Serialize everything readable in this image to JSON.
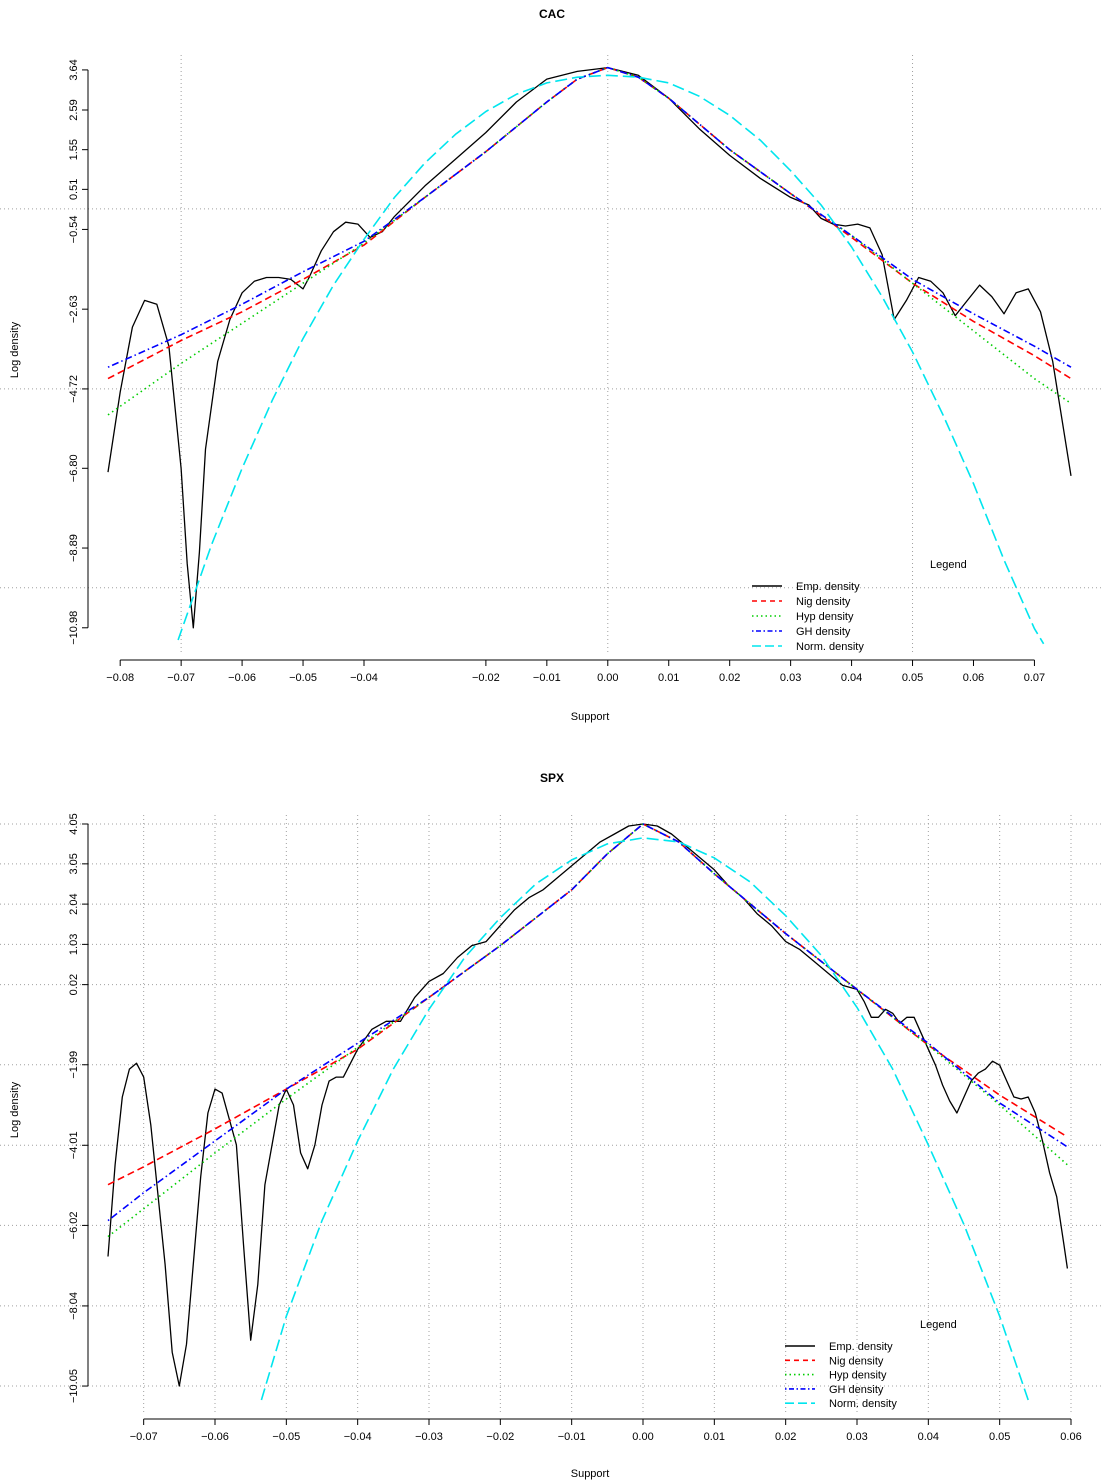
{
  "chart_data": [
    {
      "type": "line",
      "title": "CAC",
      "xlabel": "Support",
      "ylabel": "Log density",
      "x_ticks": [
        -0.08,
        -0.07,
        -0.06,
        -0.05,
        -0.04,
        -0.02,
        -0.01,
        0.0,
        0.01,
        0.02,
        0.03,
        0.04,
        0.05,
        0.06,
        0.07
      ],
      "x_tick_labels": [
        "−0.08",
        "−0.07",
        "−0.06",
        "−0.05",
        "−0.04",
        "−0.02",
        "−0.01",
        "0.00",
        "0.01",
        "0.02",
        "0.03",
        "0.04",
        "0.05",
        "0.06",
        "0.07"
      ],
      "y_ticks": [
        3.64,
        2.59,
        1.55,
        0.51,
        -0.54,
        -2.63,
        -4.72,
        -6.8,
        -8.89,
        -10.98
      ],
      "y_tick_labels": [
        "3.64",
        "2.59",
        "1.55",
        "0.51",
        "−0.54",
        "−2.63",
        "−4.72",
        "−6.80",
        "−8.89",
        "−10.98"
      ],
      "xlim": [
        -0.082,
        0.076
      ],
      "ylim": [
        -11.3,
        3.9
      ],
      "grid": {
        "vertical": [
          -0.07,
          0.0,
          0.05
        ],
        "horizontal": [
          0.0,
          -4.72,
          -9.93
        ]
      },
      "legend": {
        "title": "Legend",
        "position": "bottom-right"
      },
      "series": [
        {
          "name": "Emp. density",
          "color": "#000000",
          "dash": "solid",
          "x": [
            -0.082,
            -0.08,
            -0.078,
            -0.076,
            -0.074,
            -0.072,
            -0.07,
            -0.069,
            -0.068,
            -0.067,
            -0.066,
            -0.064,
            -0.062,
            -0.06,
            -0.058,
            -0.056,
            -0.054,
            -0.052,
            -0.05,
            -0.049,
            -0.047,
            -0.045,
            -0.043,
            -0.041,
            -0.039,
            -0.037,
            -0.035,
            -0.03,
            -0.025,
            -0.02,
            -0.015,
            -0.01,
            -0.005,
            0.0,
            0.005,
            0.01,
            0.015,
            0.02,
            0.025,
            0.03,
            0.033,
            0.035,
            0.037,
            0.039,
            0.041,
            0.043,
            0.045,
            0.047,
            0.049,
            0.051,
            0.053,
            0.055,
            0.057,
            0.059,
            0.061,
            0.063,
            0.065,
            0.067,
            0.069,
            0.071,
            0.073,
            0.076
          ],
          "y": [
            -6.9,
            -4.8,
            -3.1,
            -2.4,
            -2.5,
            -3.6,
            -6.8,
            -9.3,
            -10.98,
            -9.0,
            -6.3,
            -4.0,
            -2.9,
            -2.2,
            -1.9,
            -1.8,
            -1.8,
            -1.85,
            -2.1,
            -1.8,
            -1.1,
            -0.6,
            -0.35,
            -0.4,
            -0.75,
            -0.6,
            -0.2,
            0.6,
            1.3,
            2.0,
            2.8,
            3.4,
            3.6,
            3.7,
            3.5,
            2.9,
            2.1,
            1.4,
            0.8,
            0.3,
            0.1,
            -0.25,
            -0.4,
            -0.45,
            -0.4,
            -0.5,
            -1.2,
            -2.9,
            -2.4,
            -1.8,
            -1.9,
            -2.2,
            -2.8,
            -2.4,
            -2.0,
            -2.3,
            -2.75,
            -2.2,
            -2.1,
            -2.7,
            -4.0,
            -7.0
          ]
        },
        {
          "name": "Nig density",
          "color": "#ff0000",
          "dash": "dashed",
          "x": [
            -0.082,
            -0.07,
            -0.06,
            -0.05,
            -0.04,
            -0.03,
            -0.02,
            -0.01,
            -0.005,
            0.0,
            0.005,
            0.01,
            0.02,
            0.03,
            0.04,
            0.05,
            0.06,
            0.07,
            0.076
          ],
          "y": [
            -4.45,
            -3.45,
            -2.7,
            -1.85,
            -0.95,
            0.3,
            1.5,
            2.8,
            3.4,
            3.7,
            3.45,
            2.9,
            1.55,
            0.4,
            -0.75,
            -1.95,
            -2.95,
            -3.85,
            -4.45
          ]
        },
        {
          "name": "Hyp density",
          "color": "#00cd00",
          "dash": "dotted",
          "x": [
            -0.082,
            -0.07,
            -0.06,
            -0.05,
            -0.04,
            -0.03,
            -0.02,
            -0.01,
            -0.005,
            0.0,
            0.005,
            0.01,
            0.02,
            0.03,
            0.04,
            0.05,
            0.06,
            0.07,
            0.076
          ],
          "y": [
            -5.4,
            -4.05,
            -3.0,
            -1.95,
            -0.9,
            0.3,
            1.5,
            2.8,
            3.4,
            3.7,
            3.45,
            2.9,
            1.55,
            0.4,
            -0.7,
            -1.95,
            -3.2,
            -4.45,
            -5.1
          ]
        },
        {
          "name": "GH density",
          "color": "#0000ff",
          "dash": "dashdot",
          "x": [
            -0.082,
            -0.07,
            -0.06,
            -0.05,
            -0.04,
            -0.03,
            -0.02,
            -0.01,
            -0.005,
            0.0,
            0.005,
            0.01,
            0.02,
            0.03,
            0.04,
            0.05,
            0.06,
            0.07,
            0.076
          ],
          "y": [
            -4.15,
            -3.3,
            -2.5,
            -1.65,
            -0.85,
            0.3,
            1.5,
            2.8,
            3.4,
            3.7,
            3.45,
            2.9,
            1.55,
            0.4,
            -0.7,
            -1.85,
            -2.75,
            -3.6,
            -4.15
          ]
        },
        {
          "name": "Norm. density",
          "color": "#00e5ee",
          "dash": "longdash",
          "x": [
            -0.0705,
            -0.065,
            -0.06,
            -0.055,
            -0.05,
            -0.045,
            -0.04,
            -0.035,
            -0.03,
            -0.025,
            -0.02,
            -0.015,
            -0.01,
            -0.005,
            0.0,
            0.005,
            0.01,
            0.015,
            0.02,
            0.025,
            0.03,
            0.035,
            0.04,
            0.045,
            0.05,
            0.055,
            0.06,
            0.065,
            0.07,
            0.0715
          ],
          "y": [
            -11.3,
            -8.8,
            -6.8,
            -5.0,
            -3.4,
            -2.0,
            -0.8,
            0.3,
            1.2,
            1.95,
            2.55,
            3.0,
            3.3,
            3.45,
            3.5,
            3.45,
            3.3,
            2.95,
            2.45,
            1.8,
            1.0,
            0.1,
            -1.0,
            -2.3,
            -3.75,
            -5.4,
            -7.2,
            -9.2,
            -11.0,
            -11.4
          ]
        }
      ]
    },
    {
      "type": "line",
      "title": "SPX",
      "xlabel": "Support",
      "ylabel": "Log density",
      "x_ticks": [
        -0.07,
        -0.06,
        -0.05,
        -0.04,
        -0.03,
        -0.02,
        -0.01,
        0.0,
        0.01,
        0.02,
        0.03,
        0.04,
        0.05,
        0.06
      ],
      "x_tick_labels": [
        "−0.07",
        "−0.06",
        "−0.05",
        "−0.04",
        "−0.03",
        "−0.02",
        "−0.01",
        "0.00",
        "0.01",
        "0.02",
        "0.03",
        "0.04",
        "0.05",
        "0.06"
      ],
      "y_ticks": [
        4.05,
        3.05,
        2.04,
        1.03,
        0.02,
        -1.99,
        -4.01,
        -6.02,
        -8.04,
        -10.05
      ],
      "y_tick_labels": [
        "4.05",
        "3.05",
        "2.04",
        "1.03",
        "0.02",
        "−1.99",
        "−4.01",
        "−6.02",
        "−8.04",
        "−10.05"
      ],
      "xlim": [
        -0.075,
        0.06
      ],
      "ylim": [
        -10.4,
        4.15
      ],
      "grid": {
        "vertical": [
          -0.07,
          -0.06,
          -0.05,
          -0.04,
          -0.03,
          -0.02,
          -0.01,
          0.0,
          0.01,
          0.02,
          0.03,
          0.04,
          0.05,
          0.06
        ],
        "horizontal": [
          4.05,
          3.05,
          2.04,
          1.03,
          0.02,
          -1.99,
          -4.01,
          -6.02,
          -8.04,
          -10.05
        ]
      },
      "legend": {
        "title": "Legend",
        "position": "bottom-right"
      },
      "series": [
        {
          "name": "Emp. density",
          "color": "#000000",
          "dash": "solid",
          "x": [
            -0.075,
            -0.074,
            -0.073,
            -0.072,
            -0.071,
            -0.07,
            -0.069,
            -0.067,
            -0.066,
            -0.065,
            -0.064,
            -0.062,
            -0.061,
            -0.06,
            -0.059,
            -0.057,
            -0.056,
            -0.055,
            -0.054,
            -0.053,
            -0.051,
            -0.05,
            -0.049,
            -0.048,
            -0.047,
            -0.046,
            -0.045,
            -0.044,
            -0.043,
            -0.042,
            -0.04,
            -0.038,
            -0.036,
            -0.034,
            -0.032,
            -0.03,
            -0.028,
            -0.026,
            -0.024,
            -0.022,
            -0.02,
            -0.018,
            -0.016,
            -0.014,
            -0.012,
            -0.01,
            -0.008,
            -0.006,
            -0.004,
            -0.002,
            0.0,
            0.002,
            0.004,
            0.006,
            0.008,
            0.01,
            0.012,
            0.014,
            0.016,
            0.018,
            0.02,
            0.022,
            0.024,
            0.026,
            0.028,
            0.03,
            0.031,
            0.032,
            0.033,
            0.034,
            0.035,
            0.036,
            0.037,
            0.038,
            0.039,
            0.04,
            0.041,
            0.042,
            0.043,
            0.044,
            0.045,
            0.046,
            0.047,
            0.048,
            0.049,
            0.05,
            0.051,
            0.052,
            0.053,
            0.054,
            0.055,
            0.056,
            0.057,
            0.058,
            0.059,
            0.0595
          ],
          "y": [
            -6.8,
            -4.5,
            -2.8,
            -2.1,
            -1.95,
            -2.3,
            -3.5,
            -7.0,
            -9.2,
            -10.05,
            -9.0,
            -4.8,
            -3.2,
            -2.6,
            -2.7,
            -4.0,
            -6.5,
            -8.9,
            -7.5,
            -5.0,
            -3.0,
            -2.6,
            -3.0,
            -4.2,
            -4.6,
            -4.0,
            -3.0,
            -2.4,
            -2.3,
            -2.3,
            -1.6,
            -1.1,
            -0.9,
            -0.9,
            -0.3,
            0.1,
            0.3,
            0.7,
            1.0,
            1.1,
            1.5,
            1.9,
            2.2,
            2.4,
            2.7,
            3.0,
            3.3,
            3.6,
            3.8,
            4.0,
            4.05,
            4.0,
            3.8,
            3.5,
            3.2,
            2.9,
            2.5,
            2.2,
            1.8,
            1.5,
            1.1,
            0.9,
            0.6,
            0.3,
            0.0,
            -0.1,
            -0.4,
            -0.8,
            -0.8,
            -0.6,
            -0.7,
            -0.95,
            -0.8,
            -0.8,
            -1.2,
            -1.6,
            -2.0,
            -2.5,
            -2.9,
            -3.2,
            -2.8,
            -2.4,
            -2.2,
            -2.1,
            -1.9,
            -2.0,
            -2.4,
            -2.8,
            -2.85,
            -2.8,
            -3.2,
            -3.9,
            -4.7,
            -5.3,
            -6.5,
            -7.1
          ]
        },
        {
          "name": "Nig density",
          "color": "#ff0000",
          "dash": "dashed",
          "x": [
            -0.075,
            -0.07,
            -0.06,
            -0.05,
            -0.04,
            -0.03,
            -0.02,
            -0.01,
            -0.005,
            0.0,
            0.005,
            0.01,
            0.02,
            0.03,
            0.04,
            0.05,
            0.0595
          ],
          "y": [
            -5.0,
            -4.55,
            -3.6,
            -2.6,
            -1.6,
            -0.3,
            1.0,
            2.4,
            3.3,
            4.05,
            3.6,
            2.8,
            1.3,
            -0.1,
            -1.5,
            -2.75,
            -3.8
          ]
        },
        {
          "name": "Hyp density",
          "color": "#00cd00",
          "dash": "dotted",
          "x": [
            -0.075,
            -0.07,
            -0.06,
            -0.05,
            -0.04,
            -0.03,
            -0.02,
            -0.01,
            -0.005,
            0.0,
            0.005,
            0.01,
            0.02,
            0.03,
            0.04,
            0.05,
            0.0595
          ],
          "y": [
            -6.3,
            -5.6,
            -4.2,
            -2.85,
            -1.55,
            -0.3,
            1.0,
            2.4,
            3.3,
            4.05,
            3.6,
            2.8,
            1.3,
            -0.1,
            -1.5,
            -3.0,
            -4.5
          ]
        },
        {
          "name": "GH density",
          "color": "#0000ff",
          "dash": "dashdot",
          "x": [
            -0.075,
            -0.07,
            -0.06,
            -0.05,
            -0.04,
            -0.03,
            -0.02,
            -0.01,
            -0.005,
            0.0,
            0.005,
            0.01,
            0.02,
            0.03,
            0.04,
            0.05,
            0.0595
          ],
          "y": [
            -5.9,
            -5.2,
            -3.9,
            -2.6,
            -1.45,
            -0.3,
            1.0,
            2.4,
            3.3,
            4.05,
            3.6,
            2.8,
            1.3,
            -0.1,
            -1.45,
            -2.95,
            -4.05
          ]
        },
        {
          "name": "Norm. density",
          "color": "#00e5ee",
          "dash": "longdash",
          "x": [
            -0.0535,
            -0.05,
            -0.045,
            -0.04,
            -0.035,
            -0.03,
            -0.025,
            -0.02,
            -0.015,
            -0.01,
            -0.005,
            0.0,
            0.005,
            0.01,
            0.015,
            0.02,
            0.025,
            0.03,
            0.035,
            0.04,
            0.045,
            0.05,
            0.054
          ],
          "y": [
            -10.4,
            -8.3,
            -5.9,
            -3.9,
            -2.1,
            -0.6,
            0.7,
            1.7,
            2.55,
            3.15,
            3.55,
            3.7,
            3.6,
            3.2,
            2.6,
            1.75,
            0.75,
            -0.55,
            -2.1,
            -4.0,
            -6.0,
            -8.3,
            -10.4
          ]
        }
      ]
    }
  ]
}
